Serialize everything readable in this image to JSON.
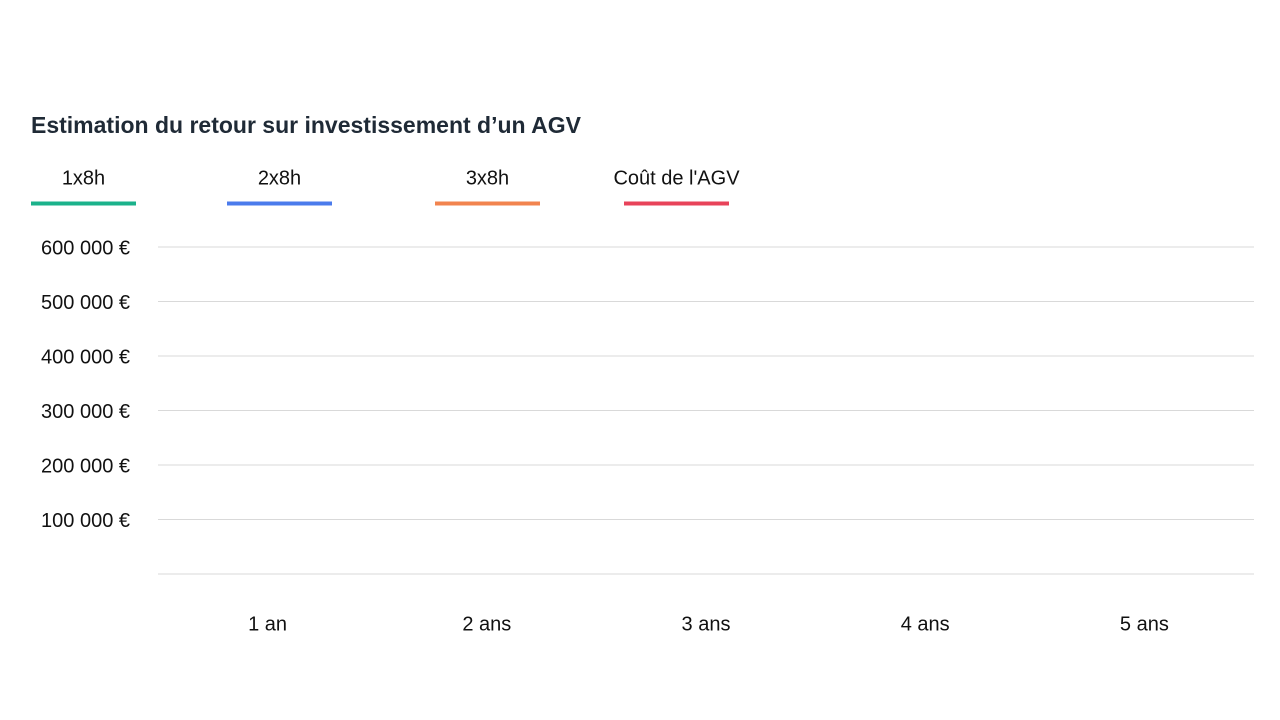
{
  "chart_data": {
    "type": "line",
    "title": "Estimation du retour sur investissement d’un AGV",
    "categories": [
      "1 an",
      "2 ans",
      "3 ans",
      "4 ans",
      "5 ans"
    ],
    "series": [
      {
        "name": "1x8h",
        "color": "#1bb28b",
        "values": [
          null,
          null,
          null,
          null,
          null
        ]
      },
      {
        "name": "2x8h",
        "color": "#4b7bec",
        "values": [
          null,
          null,
          null,
          null,
          null
        ]
      },
      {
        "name": "3x8h",
        "color": "#f2844f",
        "values": [
          null,
          null,
          null,
          null,
          null
        ]
      },
      {
        "name": "Coût de l'AGV",
        "color": "#e8435a",
        "values": [
          null,
          null,
          null,
          null,
          null
        ]
      }
    ],
    "ylim": [
      0,
      600000
    ],
    "yticks": [
      {
        "value": 100000,
        "label": "100 000 €"
      },
      {
        "value": 200000,
        "label": "200 000 €"
      },
      {
        "value": 300000,
        "label": "300 000 €"
      },
      {
        "value": 400000,
        "label": "400 000 €"
      },
      {
        "value": 500000,
        "label": "500 000 €"
      },
      {
        "value": 600000,
        "label": "600 000 €"
      }
    ],
    "grid": true
  }
}
